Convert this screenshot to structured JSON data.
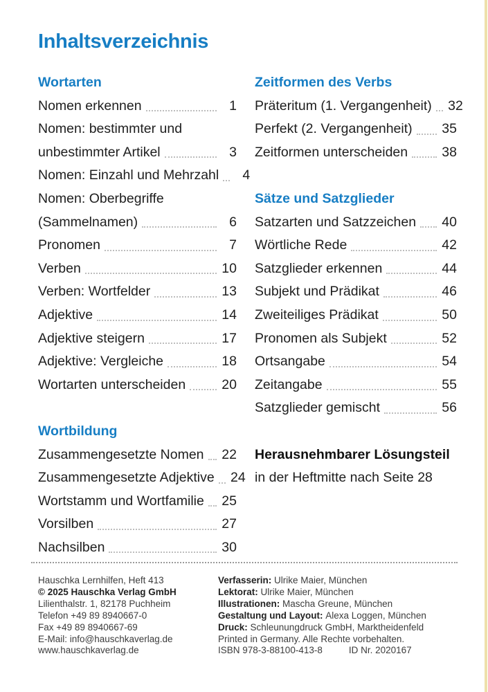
{
  "page": {
    "title": "Inhaltsverzeichnis",
    "accent_color": "#177ec4",
    "edge_bar_color": "#eee1ab"
  },
  "toc": {
    "left_sections": [
      {
        "heading": "Wortarten",
        "entries": [
          {
            "lines": [
              "Nomen erkennen"
            ],
            "page": "1"
          },
          {
            "lines": [
              "Nomen: bestimmter und",
              "unbestimmter Artikel"
            ],
            "page": "3"
          },
          {
            "lines": [
              "Nomen: Einzahl und Mehrzahl"
            ],
            "page": "4"
          },
          {
            "lines": [
              "Nomen: Oberbegriffe",
              "(Sammelnamen)"
            ],
            "page": "6"
          },
          {
            "lines": [
              "Pronomen"
            ],
            "page": "7"
          },
          {
            "lines": [
              "Verben"
            ],
            "page": "10"
          },
          {
            "lines": [
              "Verben: Wortfelder"
            ],
            "page": "13"
          },
          {
            "lines": [
              "Adjektive"
            ],
            "page": "14"
          },
          {
            "lines": [
              "Adjektive steigern"
            ],
            "page": "17"
          },
          {
            "lines": [
              "Adjektive: Vergleiche"
            ],
            "page": "18"
          },
          {
            "lines": [
              "Wortarten unterscheiden"
            ],
            "page": "20"
          }
        ]
      },
      {
        "heading": "Wortbildung",
        "entries": [
          {
            "lines": [
              "Zusammengesetzte Nomen"
            ],
            "page": "22"
          },
          {
            "lines": [
              "Zusammengesetzte Adjektive"
            ],
            "page": "24"
          },
          {
            "lines": [
              "Wortstamm und Wortfamilie"
            ],
            "page": "25"
          },
          {
            "lines": [
              "Vorsilben"
            ],
            "page": "27"
          },
          {
            "lines": [
              "Nachsilben"
            ],
            "page": "30"
          }
        ]
      }
    ],
    "right_sections": [
      {
        "heading": "Zeitformen des Verbs",
        "entries": [
          {
            "lines": [
              "Präteritum (1. Vergangenheit)"
            ],
            "page": "32"
          },
          {
            "lines": [
              "Perfekt (2. Vergangenheit)"
            ],
            "page": "35"
          },
          {
            "lines": [
              "Zeitformen unterscheiden"
            ],
            "page": "38"
          }
        ]
      },
      {
        "heading": "Sätze und Satzglieder",
        "entries": [
          {
            "lines": [
              "Satzarten und Satzzeichen"
            ],
            "page": "40"
          },
          {
            "lines": [
              "Wörtliche Rede"
            ],
            "page": "42"
          },
          {
            "lines": [
              "Satzglieder erkennen"
            ],
            "page": "44"
          },
          {
            "lines": [
              "Subjekt und Prädikat"
            ],
            "page": "46"
          },
          {
            "lines": [
              "Zweiteiliges Prädikat"
            ],
            "page": "50"
          },
          {
            "lines": [
              "Pronomen als Subjekt"
            ],
            "page": "52"
          },
          {
            "lines": [
              "Ortsangabe"
            ],
            "page": "54"
          },
          {
            "lines": [
              "Zeitangabe"
            ],
            "page": "55"
          },
          {
            "lines": [
              "Satzglieder gemischt"
            ],
            "page": "56"
          }
        ]
      }
    ],
    "note": {
      "title": "Herausnehmbarer Lösungsteil",
      "text": "in der Heftmitte nach Seite 28"
    }
  },
  "footer": {
    "left_lines": [
      {
        "text": "Hauschka Lernhilfen, Heft 413",
        "bold": false
      },
      {
        "text": "© 2025 Hauschka Verlag GmbH",
        "bold": true
      },
      {
        "text": "Lilienthalstr. 1, 82178 Puchheim",
        "bold": false
      },
      {
        "text": "Telefon +49 89 8940667-0",
        "bold": false
      },
      {
        "text": "Fax +49 89 8940667-69",
        "bold": false
      },
      {
        "text": "E-Mail: info@hauschkaverlag.de",
        "bold": false
      },
      {
        "text": "www.hauschkaverlag.de",
        "bold": false
      }
    ],
    "right_lines": [
      {
        "label": "Verfasserin:",
        "text": "Ulrike Maier, München"
      },
      {
        "label": "Lektorat:",
        "text": "Ulrike Maier, München"
      },
      {
        "label": "Illustrationen:",
        "text": "Mascha Greune, München"
      },
      {
        "label": "Gestaltung und Layout:",
        "text": "Alexa Loggen, München"
      },
      {
        "label": "Druck:",
        "text": "Schleunungdruck GmbH, Marktheidenfeld"
      },
      {
        "label": "",
        "text": "Printed in Germany. Alle Rechte vorbehalten."
      }
    ],
    "isbn_line": {
      "isbn": "ISBN 978-3-88100-413-8",
      "id": "ID Nr. 2020167"
    }
  }
}
